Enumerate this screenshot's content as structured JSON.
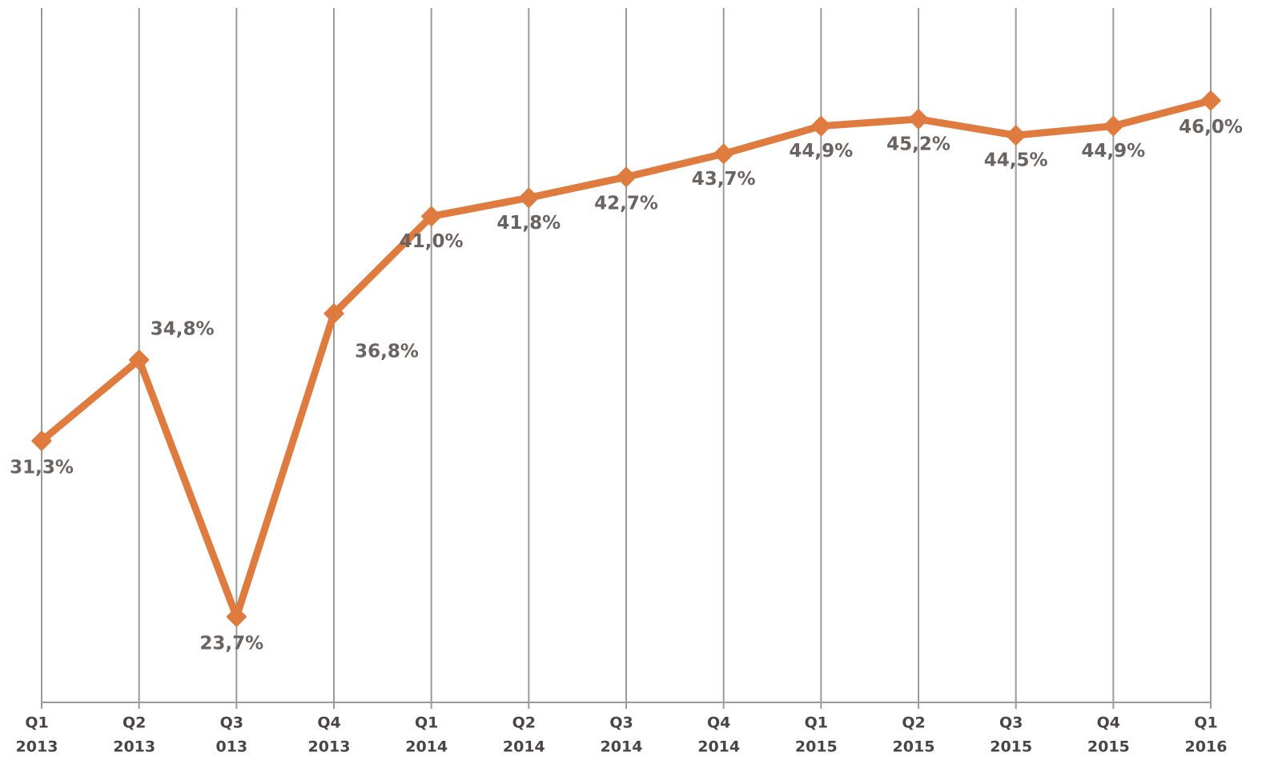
{
  "chart_data": {
    "type": "line",
    "categories": [
      [
        "Q1",
        "2013"
      ],
      [
        "Q2",
        "2013"
      ],
      [
        "Q3",
        "013"
      ],
      [
        "Q4",
        "2013"
      ],
      [
        "Q1",
        "2014"
      ],
      [
        "Q2",
        "2014"
      ],
      [
        "Q3",
        "2014"
      ],
      [
        "Q4",
        "2014"
      ],
      [
        "Q1",
        "2015"
      ],
      [
        "Q2",
        "2015"
      ],
      [
        "Q3",
        "2015"
      ],
      [
        "Q4",
        "2015"
      ],
      [
        "Q1",
        "2016"
      ]
    ],
    "series": [
      {
        "color": "#e07b3f",
        "values": [
          31.3,
          34.8,
          23.7,
          36.8,
          41.0,
          41.8,
          42.7,
          43.7,
          44.9,
          45.2,
          44.5,
          44.9,
          46.0
        ],
        "value_labels": [
          "31,3%",
          "34,8%",
          "23,7%",
          "36,8%",
          "41,0%",
          "41,8%",
          "42,7%",
          "43,7%",
          "44,9%",
          "45,2%",
          "44,5%",
          "44,9%",
          "46,0%"
        ]
      }
    ],
    "ylim": [
      20,
      50
    ],
    "grid": true
  }
}
